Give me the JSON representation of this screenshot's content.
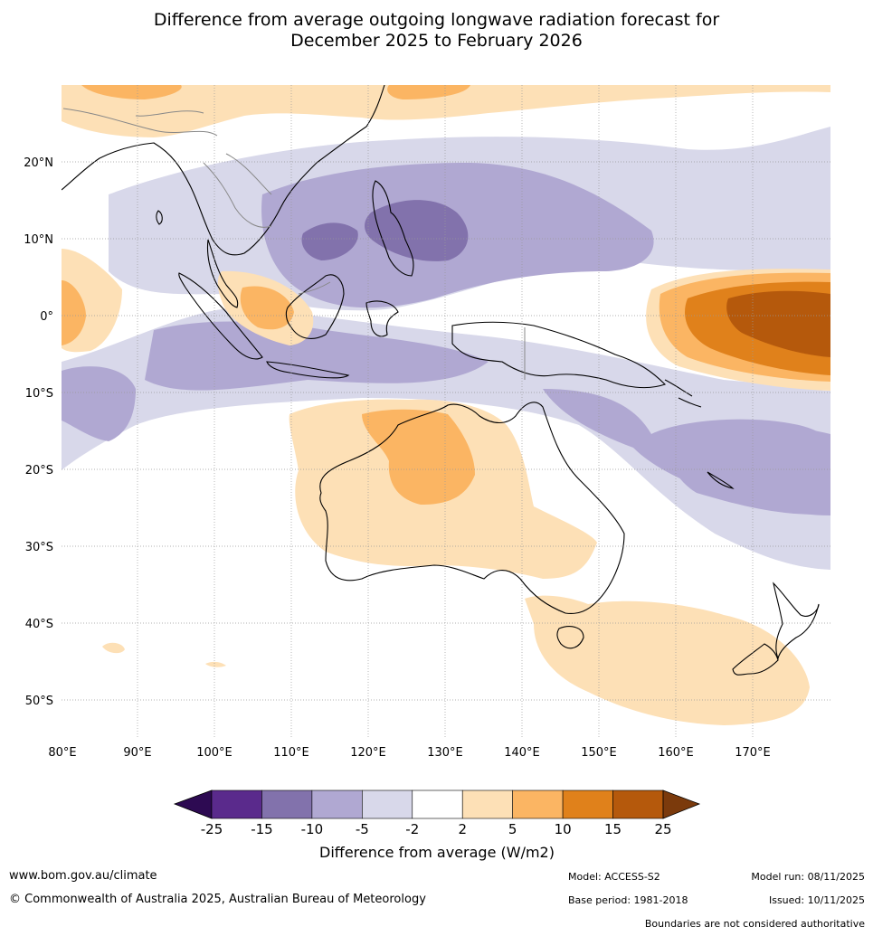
{
  "title": {
    "line1": "Difference from average outgoing longwave radiation forecast for",
    "line2": "December 2025 to February 2026"
  },
  "axes": {
    "lon_labels": [
      "80°E",
      "90°E",
      "100°E",
      "110°E",
      "120°E",
      "130°E",
      "140°E",
      "150°E",
      "160°E",
      "170°E"
    ],
    "lat_labels": [
      "20°N",
      "10°N",
      "0°",
      "10°S",
      "20°S",
      "30°S",
      "40°S",
      "50°S"
    ]
  },
  "colorbar": {
    "label": "Difference from average (W/m2)",
    "ticks": [
      "-25",
      "-15",
      "-10",
      "-5",
      "-2",
      "2",
      "5",
      "10",
      "15",
      "25"
    ],
    "colors": [
      "#5a2a8c",
      "#8272ac",
      "#b0a8d2",
      "#d8d8ea",
      "#ffffff",
      "#fde0b6",
      "#fbb563",
      "#e0811b",
      "#b5590c"
    ],
    "under_color": "#2d0a52",
    "over_color": "#7b3a0c"
  },
  "footer": {
    "website": "www.bom.gov.au/climate",
    "copyright": "© Commonwealth of Australia 2025, Australian Bureau of Meteorology",
    "model": "Model: ACCESS-S2",
    "base_period": "Base period: 1981-2018",
    "model_run": "Model run: 08/11/2025",
    "issued": "Issued: 10/11/2025",
    "disclaimer": "Boundaries are not considered authoritative"
  }
}
